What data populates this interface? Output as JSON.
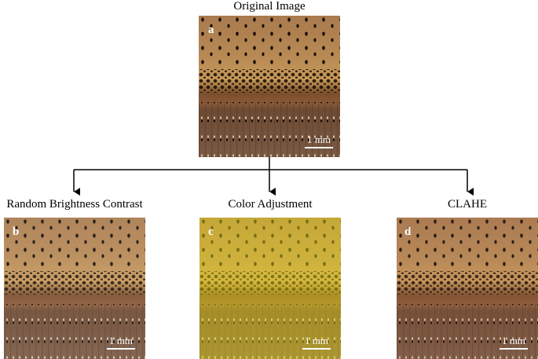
{
  "header": {
    "title": "Original Image"
  },
  "original": {
    "letter": "a",
    "scale": "1 mm"
  },
  "branches": [
    {
      "label": "Random Brightness Contrast",
      "letter": "b",
      "scale": "1 mm"
    },
    {
      "label": "Color Adjustment",
      "letter": "c",
      "scale": "1 mm"
    },
    {
      "label": "CLAHE",
      "letter": "d",
      "scale": "1 mm"
    }
  ]
}
